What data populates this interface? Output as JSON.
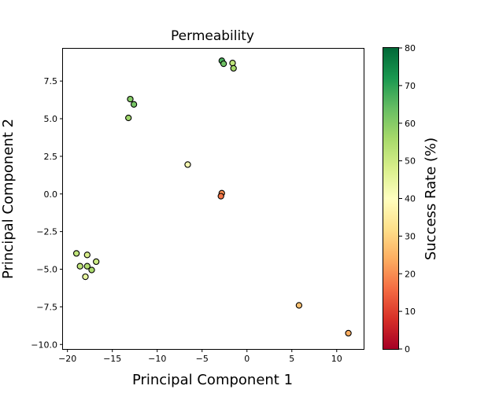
{
  "chart_data": {
    "type": "scatter",
    "title": "Permeability",
    "xlabel": "Principal Component 1",
    "ylabel": "Principal Component 2",
    "xlim": [
      -20.5,
      13.0
    ],
    "ylim": [
      -10.3,
      9.7
    ],
    "xticks": [
      -20,
      -15,
      -10,
      -5,
      0,
      5,
      10
    ],
    "yticks": [
      -10.0,
      -7.5,
      -5.0,
      -2.5,
      0.0,
      2.5,
      5.0,
      7.5
    ],
    "xtick_labels": [
      "−20",
      "−15",
      "−10",
      "−5",
      "0",
      "5",
      "10"
    ],
    "ytick_labels": [
      "−10.0",
      "−7.5",
      "−5.0",
      "−2.5",
      "0.0",
      "2.5",
      "5.0",
      "7.5"
    ],
    "grid": false,
    "colorbar": {
      "label": "Success Rate (%)",
      "colormap": "RdYlGn",
      "range": [
        0,
        80
      ],
      "ticks": [
        0,
        10,
        20,
        30,
        40,
        50,
        60,
        70,
        80
      ],
      "tick_labels": [
        "0",
        "10",
        "20",
        "30",
        "40",
        "50",
        "60",
        "70",
        "80"
      ]
    },
    "points": [
      {
        "x": -2.8,
        "y": 8.85,
        "value": 67
      },
      {
        "x": -2.6,
        "y": 8.65,
        "value": 63
      },
      {
        "x": -1.6,
        "y": 8.7,
        "value": 52
      },
      {
        "x": -1.5,
        "y": 8.35,
        "value": 56
      },
      {
        "x": -13.0,
        "y": 6.3,
        "value": 60
      },
      {
        "x": -12.6,
        "y": 5.95,
        "value": 62
      },
      {
        "x": -13.2,
        "y": 5.05,
        "value": 57
      },
      {
        "x": -6.6,
        "y": 1.95,
        "value": 42
      },
      {
        "x": -2.8,
        "y": 0.05,
        "value": 20
      },
      {
        "x": -2.9,
        "y": -0.15,
        "value": 17
      },
      {
        "x": -19.0,
        "y": -3.95,
        "value": 52
      },
      {
        "x": -17.8,
        "y": -4.05,
        "value": 48
      },
      {
        "x": -16.8,
        "y": -4.5,
        "value": 50
      },
      {
        "x": -18.6,
        "y": -4.8,
        "value": 52
      },
      {
        "x": -17.8,
        "y": -4.8,
        "value": 54
      },
      {
        "x": -17.3,
        "y": -5.05,
        "value": 55
      },
      {
        "x": -18.0,
        "y": -5.5,
        "value": 45
      },
      {
        "x": 5.8,
        "y": -7.4,
        "value": 27
      },
      {
        "x": 11.3,
        "y": -9.25,
        "value": 24
      }
    ]
  }
}
